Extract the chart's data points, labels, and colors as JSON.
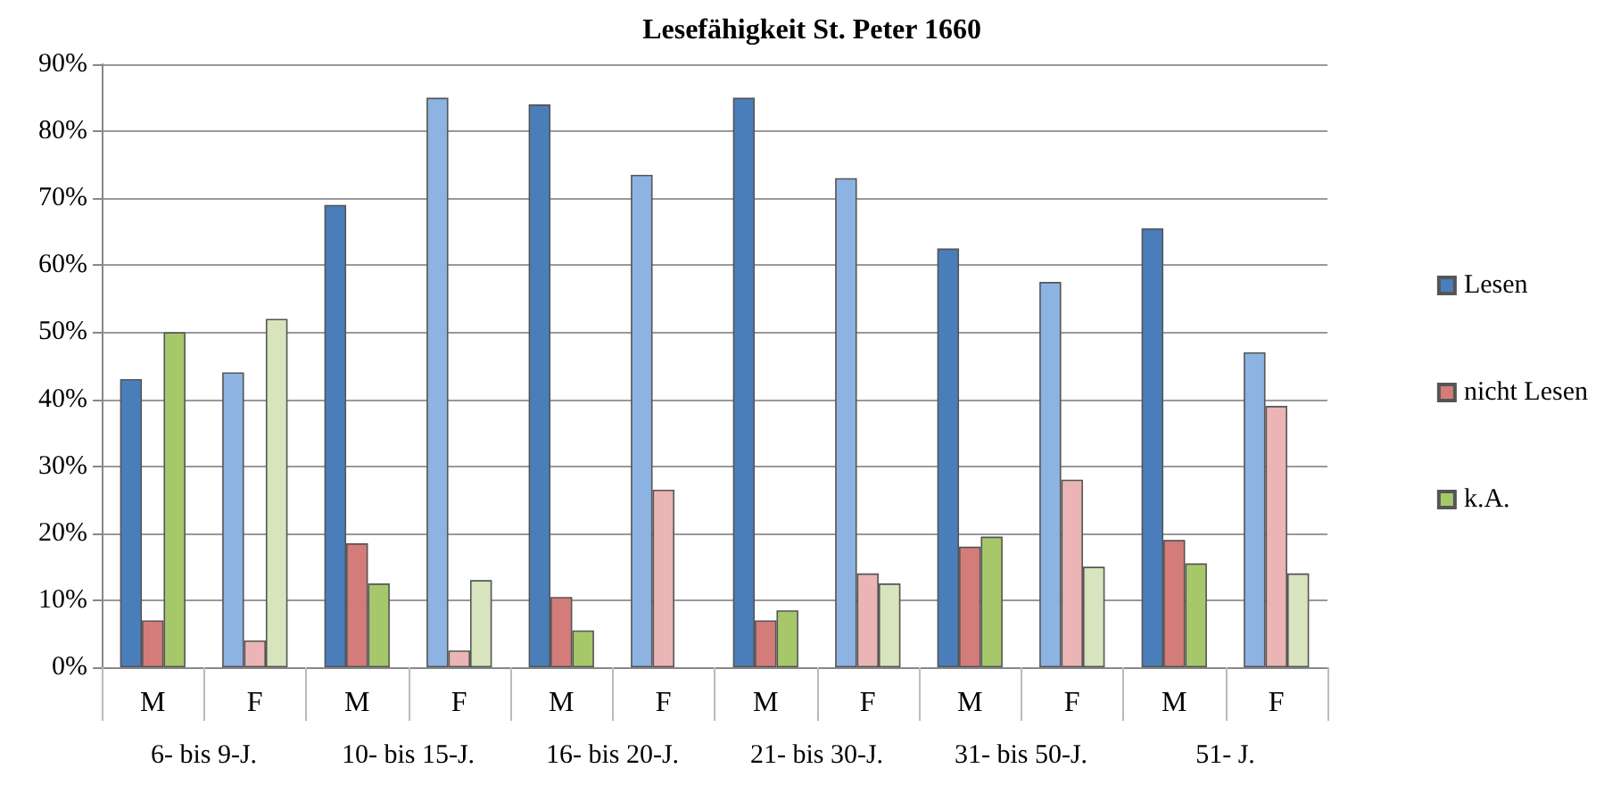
{
  "chart_data": {
    "type": "bar",
    "title": "Lesefähigkeit St. Peter 1660",
    "categories": [
      "M",
      "F",
      "M",
      "F",
      "M",
      "F",
      "M",
      "F",
      "M",
      "F",
      "M",
      "F"
    ],
    "annotations": [
      "6- bis 9-J.",
      "10- bis 15-J.",
      "16- bis 20-J.",
      "21- bis 30-J.",
      "31- bis 50-J.",
      "51- J."
    ],
    "series": [
      {
        "name": "Lesen",
        "color": "#4a7ebb",
        "colors": [
          "#4a7ebb",
          "#8db3e2",
          "#4a7ebb",
          "#8db3e2",
          "#4a7ebb",
          "#8db3e2",
          "#4a7ebb",
          "#8db3e2",
          "#4a7ebb",
          "#8db3e2",
          "#4a7ebb",
          "#8db3e2"
        ],
        "values": [
          43,
          44,
          69,
          85,
          84,
          73.5,
          85,
          73,
          62.5,
          57.5,
          65.5,
          47
        ]
      },
      {
        "name": "nicht Lesen",
        "color": "#d47c7a",
        "colors": [
          "#d47c7a",
          "#eab5b4",
          "#d47c7a",
          "#eab5b4",
          "#d47c7a",
          "#eab5b4",
          "#d47c7a",
          "#eab5b4",
          "#d47c7a",
          "#eab5b4",
          "#d47c7a",
          "#eab5b4"
        ],
        "values": [
          7,
          4,
          18.5,
          2.5,
          10.5,
          26.5,
          7,
          14,
          18,
          28,
          19,
          39
        ]
      },
      {
        "name": "k.A.",
        "color": "#a6c86b",
        "colors": [
          "#a6c86b",
          "#d7e4bd",
          "#a6c86b",
          "#d7e4bd",
          "#a6c86b",
          "#d7e4bd",
          "#a6c86b",
          "#d7e4bd",
          "#a6c86b",
          "#d7e4bd",
          "#a6c86b",
          "#d7e4bd"
        ],
        "values": [
          50,
          52,
          12.5,
          13,
          5.5,
          null,
          8.5,
          12.5,
          19.5,
          15,
          15.5,
          14
        ]
      }
    ],
    "ylim": [
      0,
      90
    ],
    "yticks": [
      {
        "value": 0,
        "label": "0%"
      },
      {
        "value": 10,
        "label": "10%"
      },
      {
        "value": 20,
        "label": "20%"
      },
      {
        "value": 30,
        "label": "30%"
      },
      {
        "value": 40,
        "label": "40%"
      },
      {
        "value": 50,
        "label": "50%"
      },
      {
        "value": 60,
        "label": "60%"
      },
      {
        "value": 70,
        "label": "70%"
      },
      {
        "value": 80,
        "label": "80%"
      },
      {
        "value": 90,
        "label": "90%"
      }
    ],
    "grid": "y",
    "legend": "right"
  }
}
